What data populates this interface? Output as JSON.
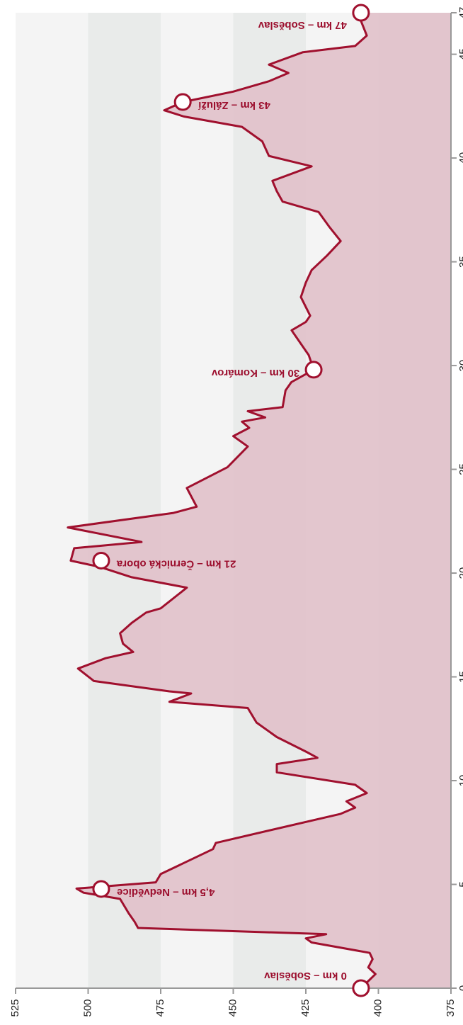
{
  "chart_data": {
    "type": "area",
    "x": [
      0,
      0.34,
      0.68,
      1.0,
      1.4,
      1.7,
      2.2,
      2.4,
      2.6,
      2.9,
      3.2,
      3.6,
      4.3,
      4.6,
      4.8,
      5.1,
      5.5,
      6.7,
      7.0,
      8.4,
      8.7,
      9.0,
      9.4,
      9.8,
      10.4,
      10.8,
      11.1,
      11.4,
      12.1,
      12.8,
      13.5,
      13.8,
      14.2,
      14.3,
      14.8,
      15.4,
      15.9,
      16.2,
      16.6,
      17.1,
      17.6,
      18.1,
      18.3,
      19.3,
      19.8,
      20.3,
      20.6,
      21.2,
      21.5,
      22.2,
      22.9,
      23.2,
      24.1,
      25.1,
      26.1,
      26.6,
      27.0,
      27.3,
      27.5,
      27.8,
      28.0,
      28.8,
      29.2,
      29.8,
      30.5,
      31.7,
      32.1,
      32.4,
      33.3,
      34.0,
      34.6,
      35.3,
      36.0,
      36.7,
      37.4,
      37.9,
      38.4,
      38.9,
      39.6,
      40.1,
      40.8,
      41.5,
      42.0,
      42.3,
      42.7,
      43.2,
      43.7,
      44.1,
      44.5,
      45.1,
      45.4,
      45.9,
      46.6,
      47
    ],
    "values": [
      406,
      403.5,
      401,
      403.5,
      402,
      403,
      423,
      425,
      418,
      482.8,
      484,
      486,
      489,
      501.6,
      504,
      476.7,
      475,
      457,
      456,
      413,
      408,
      411,
      404,
      408,
      435,
      435,
      421,
      425,
      435,
      442,
      445,
      472,
      464.5,
      472,
      498,
      503.5,
      494,
      484.5,
      488,
      489,
      485,
      480,
      475,
      466,
      485,
      496,
      506,
      504.8,
      481.6,
      507,
      470.6,
      462.6,
      466,
      452,
      445,
      450,
      444.5,
      447,
      439,
      445,
      433,
      432,
      430,
      422.3,
      424,
      429.9,
      425,
      423.5,
      426.7,
      425,
      423,
      417.7,
      413,
      417,
      420.6,
      433,
      435,
      436.5,
      423,
      437.7,
      440,
      447,
      467,
      473.8,
      467.4,
      450,
      437.7,
      431,
      437.7,
      426,
      408,
      404,
      406,
      405.5
    ],
    "color": "#a0102e",
    "fill": "#e2c3cb",
    "annotations": [
      {
        "text": "0 km – Soběslav",
        "x": 0,
        "y": 406
      },
      {
        "text": "4,5 km – Nedvědice",
        "x": 4.78,
        "y": 495.5
      },
      {
        "text": "21 km – Černická obora",
        "x": 20.6,
        "y": 495.5
      },
      {
        "text": "30 km – Komárov",
        "x": 29.8,
        "y": 422.3
      },
      {
        "text": "43 km – Záluží",
        "x": 42.7,
        "y": 467.4
      },
      {
        "text": "47 km – Soběslav",
        "x": 47,
        "y": 406
      }
    ],
    "xlim": [
      0,
      47
    ],
    "xticks": [
      0,
      5,
      10,
      15,
      20,
      25,
      30,
      35,
      40,
      45,
      47
    ],
    "ylim": [
      375,
      525
    ],
    "yticks": [
      375,
      400,
      425,
      450,
      475,
      500,
      525
    ]
  }
}
